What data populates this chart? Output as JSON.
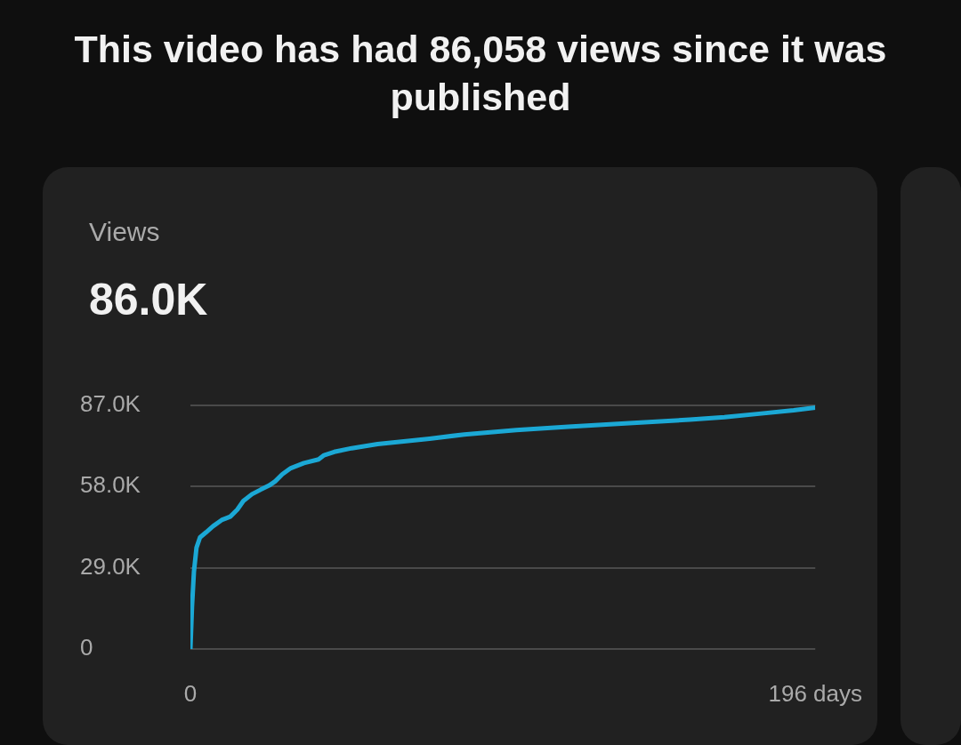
{
  "chart_data": {
    "type": "line",
    "title": "This video has had 86,058 views since it was published",
    "subtitle": "Views",
    "annotations": [
      "86.0K"
    ],
    "x": [
      0,
      0.5,
      1.1,
      1.9,
      3,
      4.9,
      7.1,
      9.8,
      12.5,
      14.7,
      16.6,
      19.3,
      22,
      24.7,
      26.6,
      28.8,
      31.5,
      35.6,
      40.2,
      41.9,
      45.1,
      50.6,
      58.7,
      66.9,
      75,
      85.9,
      102.2,
      118.5,
      137.6,
      156.6,
      167.5,
      178.4,
      189.2,
      196
    ],
    "series": [
      {
        "color": "#1ba8d5",
        "values": [
          0,
          15100,
          27500,
          36100,
          39800,
          41600,
          43800,
          46000,
          47200,
          49700,
          52800,
          55200,
          56800,
          58300,
          59800,
          62300,
          64500,
          66300,
          67600,
          69100,
          70300,
          71600,
          73100,
          74000,
          75000,
          76500,
          78100,
          79300,
          80500,
          81800,
          82700,
          83900,
          85100,
          86100
        ]
      }
    ],
    "xlim": [
      0,
      196
    ],
    "xticks": [
      {
        "value": 0,
        "label": "0"
      },
      {
        "value": 196,
        "label": "196 days"
      }
    ],
    "ylim": [
      0,
      87000
    ],
    "yticks": [
      {
        "value": 0,
        "label": "0"
      },
      {
        "value": 29000,
        "label": "29.0K"
      },
      {
        "value": 58000,
        "label": "58.0K"
      },
      {
        "value": 87000,
        "label": "87.0K"
      }
    ],
    "grid": "y",
    "legend": false,
    "marker": "none",
    "line_style": "solid"
  }
}
